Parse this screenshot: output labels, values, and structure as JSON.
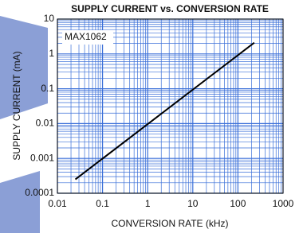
{
  "chart_data": {
    "type": "line",
    "title": "SUPPLY CURRENT vs. CONVERSION RATE",
    "x_label": "CONVERSION RATE (kHz)",
    "y_label": "SUPPLY CURRENT (mA)",
    "annotation": "MAX1062",
    "x": [
      0.025,
      230
    ],
    "values": [
      0.00025,
      2.1
    ],
    "color": "#000000",
    "xscale": "log",
    "yscale": "log",
    "xlim": [
      0.01,
      1000
    ],
    "ylim": [
      0.0001,
      10
    ],
    "xticks": [
      0.01,
      0.1,
      1,
      10,
      100,
      1000
    ],
    "yticks": [
      0.0001,
      0.001,
      0.01,
      0.1,
      1,
      10
    ],
    "grid": true,
    "grid_color": "#3a6fd8"
  }
}
